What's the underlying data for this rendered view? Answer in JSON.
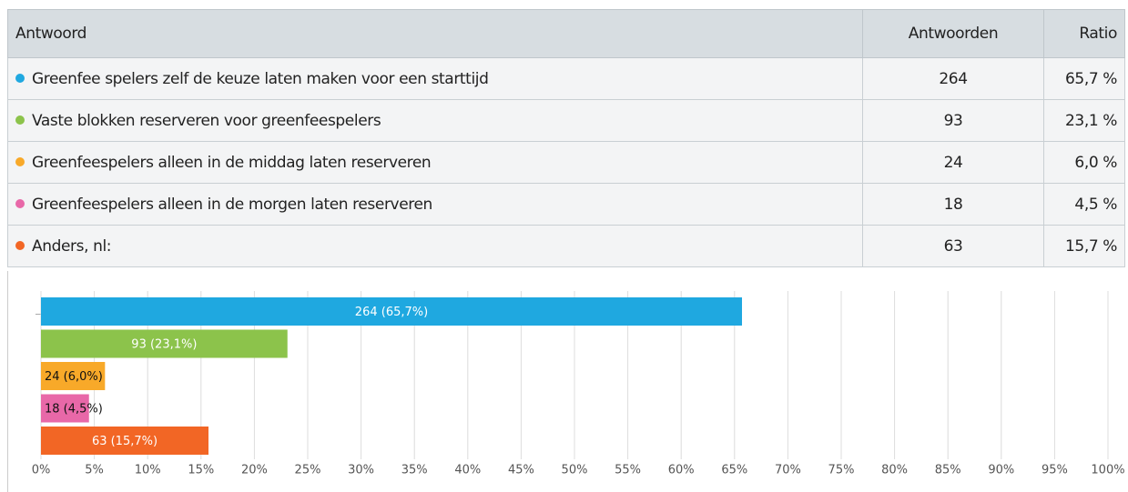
{
  "table": {
    "header": [
      "Antwoord",
      "Antwoorden",
      "Ratio"
    ],
    "rows": [
      [
        "Greenfee spelers zelf de keuze laten maken voor een starttijd",
        264,
        "65,7 %"
      ],
      [
        "Vaste blokken reserveren voor greenfeespelers",
        93,
        "23,1 %"
      ],
      [
        "Greenfeespelers alleen in de middag laten reserveren",
        24,
        "6,0 %"
      ],
      [
        "Greenfeespelers alleen in de morgen laten reserveren",
        18,
        "4,5 %"
      ],
      [
        "Anders, nl:",
        63,
        "15,7 %"
      ]
    ]
  },
  "chart_data": {
    "type": "hbar",
    "values": [
      65.7,
      23.1,
      6.0,
      4.5,
      15.7
    ],
    "value_labels": [
      "264 (65,7%)",
      "93 (23,1%)",
      "24 (6,0%)",
      "18 (4,5%)",
      "63 (15,7%)"
    ],
    "colors": [
      "#1fa8e0",
      "#8cc34b",
      "#f8a929",
      "#e868a8",
      "#f26625"
    ],
    "xlim": [
      0,
      100
    ],
    "xticks": [
      {
        "value": 0,
        "label": "0%"
      },
      {
        "value": 5,
        "label": "5%"
      },
      {
        "value": 10,
        "label": "10%"
      },
      {
        "value": 15,
        "label": "15%"
      },
      {
        "value": 20,
        "label": "20%"
      },
      {
        "value": 25,
        "label": "25%"
      },
      {
        "value": 30,
        "label": "30%"
      },
      {
        "value": 35,
        "label": "35%"
      },
      {
        "value": 40,
        "label": "40%"
      },
      {
        "value": 45,
        "label": "45%"
      },
      {
        "value": 50,
        "label": "50%"
      },
      {
        "value": 55,
        "label": "55%"
      },
      {
        "value": 60,
        "label": "60%"
      },
      {
        "value": 65,
        "label": "65%"
      },
      {
        "value": 70,
        "label": "70%"
      },
      {
        "value": 75,
        "label": "75%"
      },
      {
        "value": 80,
        "label": "80%"
      },
      {
        "value": 85,
        "label": "85%"
      },
      {
        "value": 90,
        "label": "90%"
      },
      {
        "value": 95,
        "label": "95%"
      },
      {
        "value": 100,
        "label": "100%"
      }
    ],
    "grid": true
  }
}
